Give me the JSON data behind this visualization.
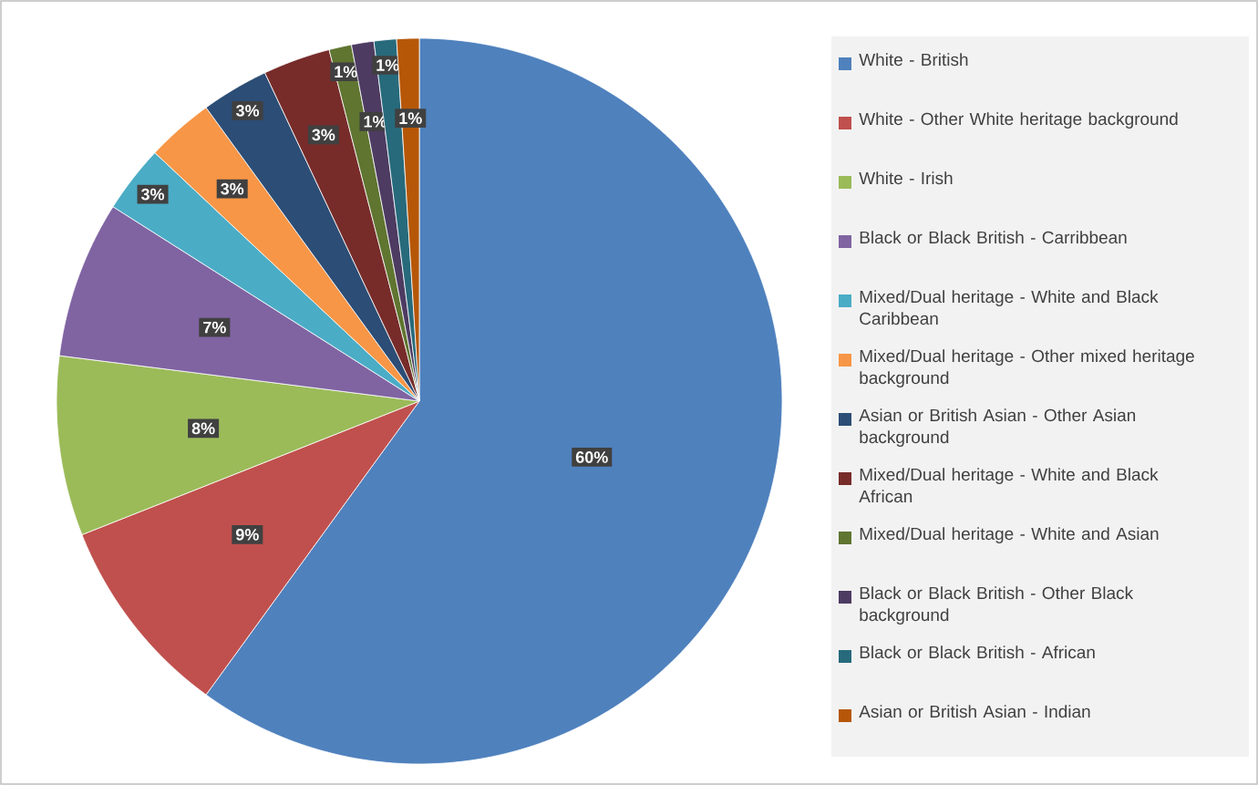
{
  "chart_data": {
    "type": "pie",
    "legend": "right",
    "categories": [
      "White - British",
      "White - Other White heritage background",
      "White - Irish",
      "Black or Black British - Carribbean",
      "Mixed/Dual heritage - White and Black Caribbean",
      "Mixed/Dual heritage - Other mixed heritage background",
      "Asian or British Asian - Other Asian background",
      "Mixed/Dual heritage - White and Black African",
      "Mixed/Dual heritage - White and Asian",
      "Black or Black British - Other Black background",
      "Black or Black British - African",
      "Asian or British Asian - Indian"
    ],
    "values": [
      60,
      9,
      8,
      7,
      3,
      3,
      3,
      3,
      1,
      1,
      1,
      1
    ],
    "value_labels": [
      "60%",
      "9%",
      "8%",
      "7%",
      "3%",
      "3%",
      "3%",
      "3%",
      "1%",
      "1%",
      "1%",
      "1%"
    ],
    "colors": [
      "#4f81bd",
      "#c0504d",
      "#9bbb59",
      "#8064a2",
      "#4bacc6",
      "#f79646",
      "#2c4d75",
      "#772c2a",
      "#5f7530",
      "#4d3b62",
      "#276a7c",
      "#b65708"
    ]
  }
}
